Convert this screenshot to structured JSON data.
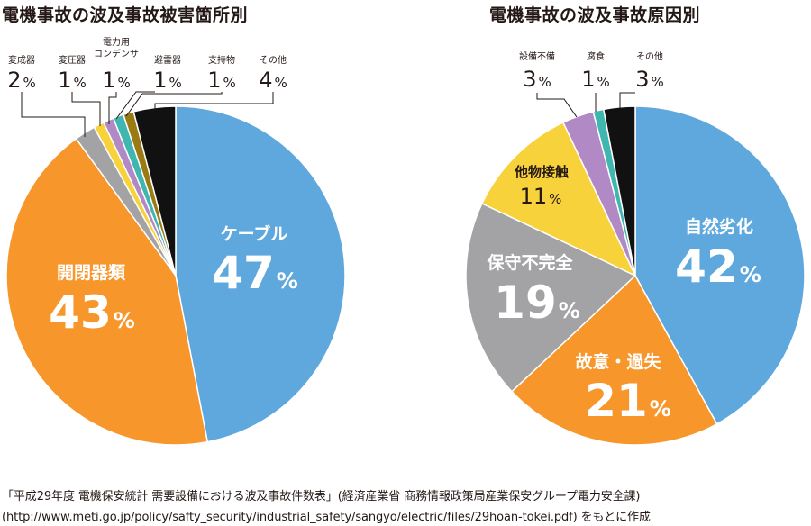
{
  "chart_data": [
    {
      "type": "pie",
      "title": "電機事故の波及事故被害箇所別",
      "slices": [
        {
          "label": "ケーブル",
          "value": 47,
          "color": "#5fa8de"
        },
        {
          "label": "開閉器類",
          "value": 43,
          "color": "#f7962a"
        },
        {
          "label": "変成器",
          "value": 2,
          "color": "#a3a3a6"
        },
        {
          "label": "変圧器",
          "value": 1,
          "color": "#f8d23a"
        },
        {
          "label": "電力用コンデンサ",
          "value": 1,
          "color": "#b189c4"
        },
        {
          "label": "避雷器",
          "value": 1,
          "color": "#3fb6b0"
        },
        {
          "label": "支持物",
          "value": 1,
          "color": "#9a7a13"
        },
        {
          "label": "その他",
          "value": 4,
          "color": "#111111"
        }
      ]
    },
    {
      "type": "pie",
      "title": "電機事故の波及事故原因別",
      "slices": [
        {
          "label": "自然劣化",
          "value": 42,
          "color": "#5fa8de"
        },
        {
          "label": "故意・過失",
          "value": 21,
          "color": "#f7962a"
        },
        {
          "label": "保守不完全",
          "value": 19,
          "color": "#a3a3a6"
        },
        {
          "label": "他物接触",
          "value": 11,
          "color": "#f8d23a"
        },
        {
          "label": "設備不備",
          "value": 3,
          "color": "#b189c4"
        },
        {
          "label": "腐食",
          "value": 1,
          "color": "#3fb6b0"
        },
        {
          "label": "その他",
          "value": 3,
          "color": "#111111"
        }
      ]
    }
  ],
  "percent_unit": "%",
  "source": {
    "line1": "「平成29年度 電機保安統計 需要設備における波及事故件数表」(経済産業省 商務情報政策局産業保安グループ電力安全課)",
    "line2": "(http://www.meti.go.jp/policy/safty_security/industrial_safety/sangyo/electric/files/29hoan-tokei.pdf) をもとに作成"
  }
}
